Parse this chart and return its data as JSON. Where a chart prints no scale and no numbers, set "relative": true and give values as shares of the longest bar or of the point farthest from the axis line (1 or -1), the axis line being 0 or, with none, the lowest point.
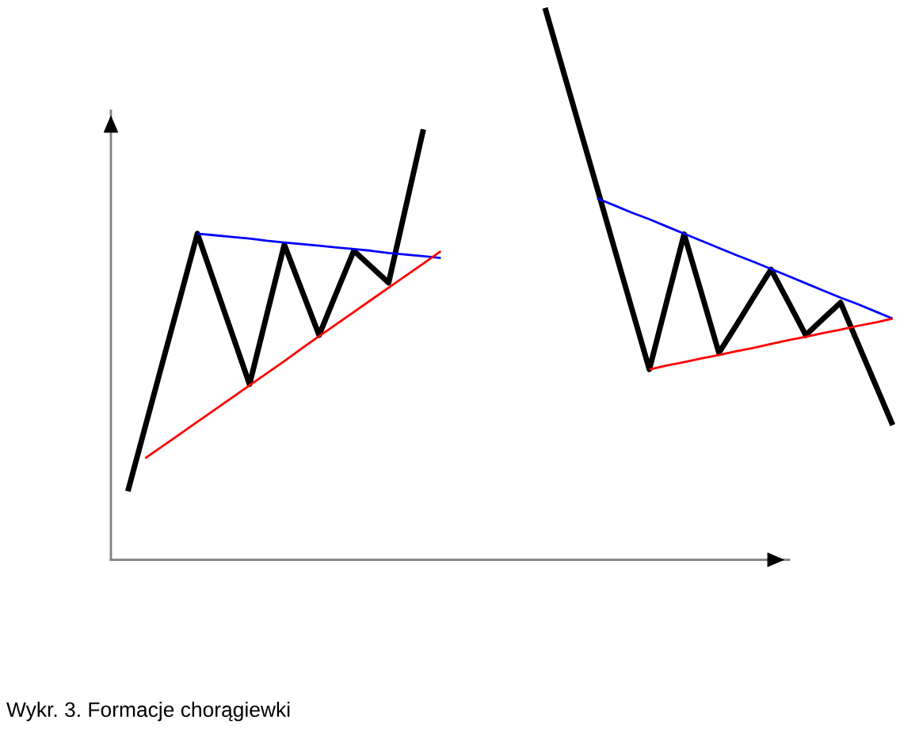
{
  "chart_data": {
    "type": "line",
    "relative": true,
    "categories": [
      null,
      null,
      null,
      null,
      null,
      null,
      null,
      null,
      null,
      null,
      null,
      null,
      null,
      null,
      null,
      null,
      null,
      null,
      null,
      null,
      null,
      null,
      null,
      null,
      null,
      null,
      null,
      null,
      null,
      null,
      null,
      null,
      null,
      null,
      null,
      null,
      null,
      null,
      null,
      null,
      null,
      null,
      null,
      null,
      null
    ],
    "series": [
      {
        "color": "#000000",
        "values": [
          0.124,
          0.241,
          0.358,
          0.474,
          0.591,
          0.5,
          0.409,
          0.318,
          0.445,
          0.571,
          0.489,
          0.407,
          0.484,
          0.56,
          0.531,
          0.502,
          0.641,
          0.78,
          null,
          null,
          null,
          null,
          null,
          null,
          null,
          null,
          null,
          null,
          null,
          null,
          null,
          null,
          null,
          null,
          null,
          null,
          null,
          null,
          null,
          null,
          null,
          null,
          null,
          null,
          null
        ]
      },
      {
        "color": "#0000ff",
        "values": [
          null,
          null,
          null,
          null,
          0.591,
          0.588,
          0.585,
          0.582,
          0.578,
          0.575,
          0.572,
          0.569,
          0.566,
          0.563,
          0.56,
          0.556,
          0.553,
          0.55,
          0.547,
          null,
          null,
          null,
          null,
          null,
          null,
          null,
          null,
          null,
          null,
          null,
          null,
          null,
          null,
          null,
          null,
          null,
          null,
          null,
          null,
          null,
          null,
          null,
          null,
          null,
          null
        ]
      },
      {
        "color": "#ff0000",
        "values": [
          null,
          0.184,
          0.206,
          0.228,
          0.25,
          0.272,
          0.294,
          0.316,
          0.338,
          0.36,
          0.383,
          0.405,
          0.427,
          0.449,
          0.471,
          0.493,
          0.515,
          0.537,
          0.559,
          null,
          null,
          null,
          null,
          null,
          null,
          null,
          null,
          null,
          null,
          null,
          null,
          null,
          null,
          null,
          null,
          null,
          null,
          null,
          null,
          null,
          null,
          null,
          null,
          null,
          null
        ]
      },
      {
        "color": "#000000",
        "values": [
          null,
          null,
          null,
          null,
          null,
          null,
          null,
          null,
          null,
          null,
          null,
          null,
          null,
          null,
          null,
          null,
          null,
          null,
          null,
          null,
          null,
          null,
          null,
          null,
          1.0,
          0.891,
          0.782,
          0.673,
          0.563,
          0.454,
          0.345,
          0.468,
          0.59,
          0.483,
          0.375,
          0.425,
          0.476,
          0.526,
          0.467,
          0.407,
          0.437,
          0.466,
          0.392,
          0.318,
          0.244
        ]
      },
      {
        "color": "#0000ff",
        "values": [
          null,
          null,
          null,
          null,
          null,
          null,
          null,
          null,
          null,
          null,
          null,
          null,
          null,
          null,
          null,
          null,
          null,
          null,
          null,
          null,
          null,
          null,
          null,
          null,
          null,
          null,
          null,
          0.655,
          0.642,
          0.629,
          0.617,
          0.604,
          0.591,
          0.578,
          0.565,
          0.552,
          0.54,
          0.527,
          0.514,
          0.501,
          0.488,
          0.475,
          0.463,
          0.45,
          0.437
        ]
      },
      {
        "color": "#ff0000",
        "values": [
          null,
          null,
          null,
          null,
          null,
          null,
          null,
          null,
          null,
          null,
          null,
          null,
          null,
          null,
          null,
          null,
          null,
          null,
          null,
          null,
          null,
          null,
          null,
          null,
          null,
          null,
          null,
          null,
          null,
          null,
          0.345,
          0.352,
          0.358,
          0.365,
          0.371,
          0.378,
          0.384,
          0.391,
          0.398,
          0.404,
          0.411,
          0.417,
          0.424,
          0.43,
          0.437
        ]
      }
    ],
    "annotations": [
      "Wykr. 3. Formacje chorągiewki"
    ]
  }
}
